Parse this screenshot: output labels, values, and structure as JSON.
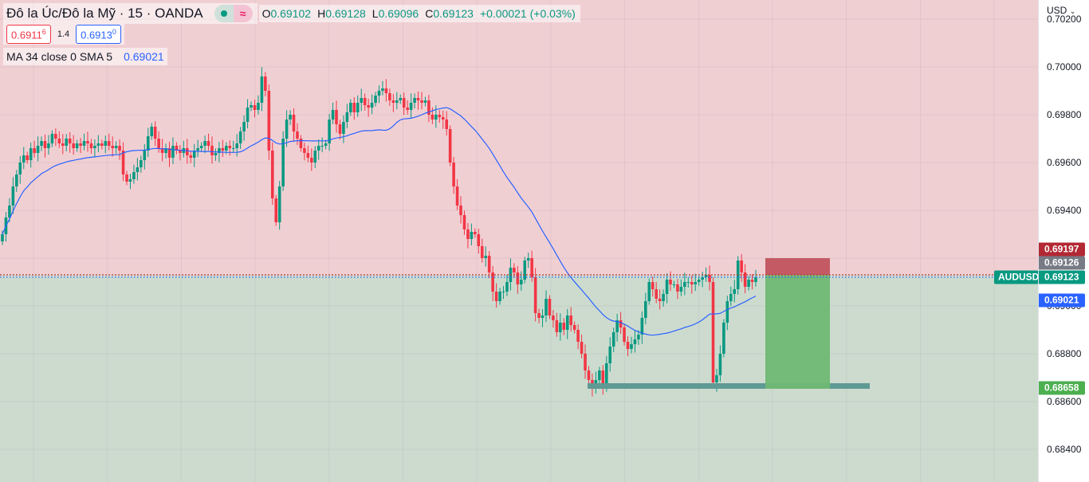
{
  "header": {
    "symbol_title": "Đô la Úc/Đô la Mỹ · 15 · OANDA",
    "market_status_icon": "market-open-dot-icon",
    "data_type_icon": "delayed-data-wave-icon",
    "ohlc": {
      "o_label": "O",
      "o": "0.69102",
      "h_label": "H",
      "h": "0.69128",
      "l_label": "L",
      "l": "0.69096",
      "c_label": "C",
      "c": "0.69123",
      "change": "+0.00021 (+0.03%)"
    },
    "sell_price_main": "0.6911",
    "sell_price_pip": "6",
    "spread": "1.4",
    "buy_price_main": "0.6913",
    "buy_price_pip": "0",
    "indicator_label": "MA 34 close 0 SMA 5",
    "indicator_value": "0.69021"
  },
  "price_axis": {
    "currency": "USD",
    "ticks": [
      "0.70200",
      "0.70000",
      "0.69800",
      "0.69600",
      "0.69400",
      "0.69200",
      "0.69000",
      "0.68800",
      "0.68600",
      "0.68400"
    ],
    "labels": {
      "stop_loss": "0.69197",
      "entry": "0.69126",
      "last_price": "0.69123",
      "ma": "0.69021",
      "take_profit": "0.68658"
    },
    "symbol_tag": "AUDUSD"
  },
  "colors": {
    "up": "#089981",
    "down": "#f23645",
    "ma": "#2962ff",
    "risk_zone": "#f1cfd3",
    "reward_zone": "#cddbcf",
    "stop_box": "#c0505a",
    "target_box": "#6fb873",
    "support_bar": "#5f9a94"
  },
  "chart_data": {
    "type": "candlestick",
    "title": "Đô la Úc/Đô la Mỹ · 15 · OANDA",
    "symbol": "AUDUSD",
    "timeframe": "15",
    "ylabel": "USD",
    "ylim": [
      0.6833,
      0.7022
    ],
    "yticks": [
      0.702,
      0.7,
      0.698,
      0.696,
      0.694,
      0.692,
      0.69,
      0.688,
      0.686,
      0.684
    ],
    "grid": true,
    "closes": [
      0.693,
      0.6937,
      0.6942,
      0.695,
      0.6955,
      0.696,
      0.6963,
      0.6961,
      0.6966,
      0.6964,
      0.6967,
      0.6969,
      0.6966,
      0.6968,
      0.6972,
      0.697,
      0.6968,
      0.6967,
      0.697,
      0.6968,
      0.6966,
      0.6968,
      0.6967,
      0.6969,
      0.6968,
      0.6966,
      0.6967,
      0.6968,
      0.6967,
      0.6969,
      0.6967,
      0.6966,
      0.6967,
      0.6965,
      0.6955,
      0.6952,
      0.6953,
      0.6956,
      0.6958,
      0.6961,
      0.6965,
      0.6971,
      0.6975,
      0.697,
      0.6966,
      0.6964,
      0.6966,
      0.6962,
      0.6967,
      0.6965,
      0.6964,
      0.6966,
      0.6963,
      0.6962,
      0.6965,
      0.6966,
      0.6967,
      0.6969,
      0.6967,
      0.6963,
      0.6964,
      0.6966,
      0.6965,
      0.6967,
      0.6966,
      0.6966,
      0.6968,
      0.6973,
      0.6977,
      0.6983,
      0.6984,
      0.6982,
      0.6985,
      0.6996,
      0.699,
      0.6965,
      0.6945,
      0.6935,
      0.695,
      0.697,
      0.6978,
      0.698,
      0.6973,
      0.697,
      0.6966,
      0.6964,
      0.6962,
      0.696,
      0.6965,
      0.6967,
      0.6967,
      0.6968,
      0.6978,
      0.6982,
      0.6976,
      0.6972,
      0.6977,
      0.6981,
      0.6985,
      0.6981,
      0.6985,
      0.6987,
      0.6984,
      0.6983,
      0.6985,
      0.6988,
      0.699,
      0.6991,
      0.6989,
      0.6986,
      0.6985,
      0.6986,
      0.6987,
      0.6983,
      0.6982,
      0.6985,
      0.6987,
      0.6986,
      0.6985,
      0.6986,
      0.698,
      0.6978,
      0.698,
      0.6979,
      0.6978,
      0.6974,
      0.696,
      0.695,
      0.6942,
      0.6938,
      0.6932,
      0.6928,
      0.6931,
      0.693,
      0.6925,
      0.692,
      0.6921,
      0.6914,
      0.6906,
      0.6902,
      0.6906,
      0.6906,
      0.691,
      0.6916,
      0.6914,
      0.6909,
      0.6911,
      0.6919,
      0.692,
      0.6912,
      0.6897,
      0.6895,
      0.6896,
      0.6903,
      0.6896,
      0.6894,
      0.6889,
      0.6893,
      0.689,
      0.6896,
      0.6892,
      0.689,
      0.6885,
      0.688,
      0.6873,
      0.6869,
      0.6866,
      0.6869,
      0.6873,
      0.6866,
      0.6876,
      0.6883,
      0.6889,
      0.6894,
      0.6891,
      0.6885,
      0.6882,
      0.6884,
      0.6886,
      0.6888,
      0.6895,
      0.6902,
      0.691,
      0.6907,
      0.6903,
      0.6902,
      0.6905,
      0.6911,
      0.6909,
      0.6909,
      0.6906,
      0.6908,
      0.691,
      0.691,
      0.6909,
      0.691,
      0.6911,
      0.6912,
      0.6913,
      0.691,
      0.6868,
      0.6871,
      0.688,
      0.6893,
      0.6902,
      0.6905,
      0.6907,
      0.6919,
      0.6914,
      0.6908,
      0.6911,
      0.691,
      0.6912
    ],
    "ma": {
      "name": "MA 34 close 0 SMA 5",
      "last": 0.69021
    },
    "position": {
      "type": "short",
      "entry": 0.69126,
      "stop": 0.69197,
      "target": 0.68658
    },
    "support_level": 0.68658,
    "last_price": 0.69123
  }
}
